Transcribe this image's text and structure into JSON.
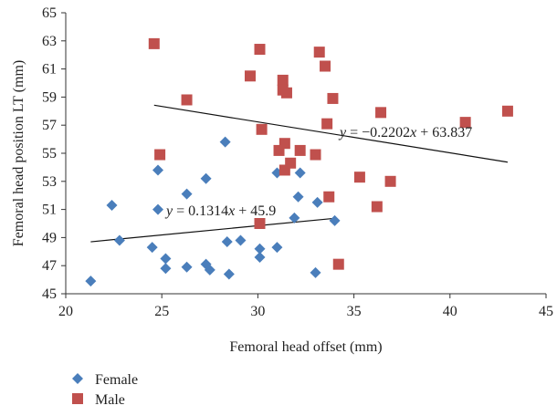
{
  "chart_data": {
    "type": "scatter",
    "title": "",
    "xlabel": "Femoral head offset (mm)",
    "ylabel": "Femoral head position LT (mm)",
    "xlim": [
      20,
      45
    ],
    "ylim": [
      45,
      65
    ],
    "xticks": [
      20,
      25,
      30,
      35,
      40,
      45
    ],
    "yticks": [
      45,
      47,
      49,
      51,
      53,
      55,
      57,
      59,
      61,
      63,
      65
    ],
    "grid": false,
    "legend_position": "bottom-left",
    "series": [
      {
        "name": "Female",
        "color": "#4a7ebb",
        "marker": "diamond",
        "points": [
          {
            "x": 21.3,
            "y": 45.9
          },
          {
            "x": 22.4,
            "y": 51.3
          },
          {
            "x": 22.8,
            "y": 48.8
          },
          {
            "x": 24.5,
            "y": 48.3
          },
          {
            "x": 24.8,
            "y": 53.8
          },
          {
            "x": 24.8,
            "y": 51.0
          },
          {
            "x": 25.2,
            "y": 47.5
          },
          {
            "x": 25.2,
            "y": 46.8
          },
          {
            "x": 26.3,
            "y": 52.1
          },
          {
            "x": 26.3,
            "y": 46.9
          },
          {
            "x": 27.3,
            "y": 53.2
          },
          {
            "x": 27.3,
            "y": 47.1
          },
          {
            "x": 27.5,
            "y": 46.7
          },
          {
            "x": 28.3,
            "y": 55.8
          },
          {
            "x": 28.4,
            "y": 48.7
          },
          {
            "x": 28.5,
            "y": 46.4
          },
          {
            "x": 29.1,
            "y": 48.8
          },
          {
            "x": 30.1,
            "y": 48.2
          },
          {
            "x": 30.1,
            "y": 47.6
          },
          {
            "x": 31.0,
            "y": 53.6
          },
          {
            "x": 31.0,
            "y": 48.3
          },
          {
            "x": 31.9,
            "y": 50.4
          },
          {
            "x": 32.1,
            "y": 51.9
          },
          {
            "x": 32.2,
            "y": 53.6
          },
          {
            "x": 33.1,
            "y": 51.5
          },
          {
            "x": 33.0,
            "y": 46.5
          },
          {
            "x": 34.0,
            "y": 50.2
          }
        ]
      },
      {
        "name": "Male",
        "color": "#c0504d",
        "marker": "square",
        "points": [
          {
            "x": 24.6,
            "y": 62.8
          },
          {
            "x": 24.9,
            "y": 54.9
          },
          {
            "x": 26.3,
            "y": 58.8
          },
          {
            "x": 29.6,
            "y": 60.5
          },
          {
            "x": 30.1,
            "y": 62.4
          },
          {
            "x": 30.1,
            "y": 50.0
          },
          {
            "x": 30.2,
            "y": 56.7
          },
          {
            "x": 31.1,
            "y": 55.2
          },
          {
            "x": 31.3,
            "y": 60.2
          },
          {
            "x": 31.3,
            "y": 59.5
          },
          {
            "x": 31.4,
            "y": 55.7
          },
          {
            "x": 31.4,
            "y": 53.8
          },
          {
            "x": 31.5,
            "y": 59.3
          },
          {
            "x": 31.7,
            "y": 54.3
          },
          {
            "x": 32.2,
            "y": 55.2
          },
          {
            "x": 33.0,
            "y": 54.9
          },
          {
            "x": 33.2,
            "y": 62.2
          },
          {
            "x": 33.5,
            "y": 61.2
          },
          {
            "x": 33.6,
            "y": 57.1
          },
          {
            "x": 33.7,
            "y": 51.9
          },
          {
            "x": 33.9,
            "y": 58.9
          },
          {
            "x": 34.2,
            "y": 47.1
          },
          {
            "x": 35.3,
            "y": 53.3
          },
          {
            "x": 36.2,
            "y": 51.2
          },
          {
            "x": 36.4,
            "y": 57.9
          },
          {
            "x": 36.9,
            "y": 53.0
          },
          {
            "x": 40.8,
            "y": 57.2
          },
          {
            "x": 43.0,
            "y": 58.0
          }
        ]
      }
    ],
    "trendlines": [
      {
        "series": "Female",
        "slope": 0.1314,
        "intercept": 45.9,
        "x_range": [
          21.3,
          34.0
        ],
        "equation_label": {
          "y": "y",
          "eq": " = 0.1314",
          "x": "x",
          "rest": " + 45.9"
        }
      },
      {
        "series": "Male",
        "slope": -0.2202,
        "intercept": 63.837,
        "x_range": [
          24.6,
          43.0
        ],
        "equation_label": {
          "y": "y",
          "eq": " = −0.2202",
          "x": "x",
          "rest": " + 63.837"
        }
      }
    ]
  }
}
